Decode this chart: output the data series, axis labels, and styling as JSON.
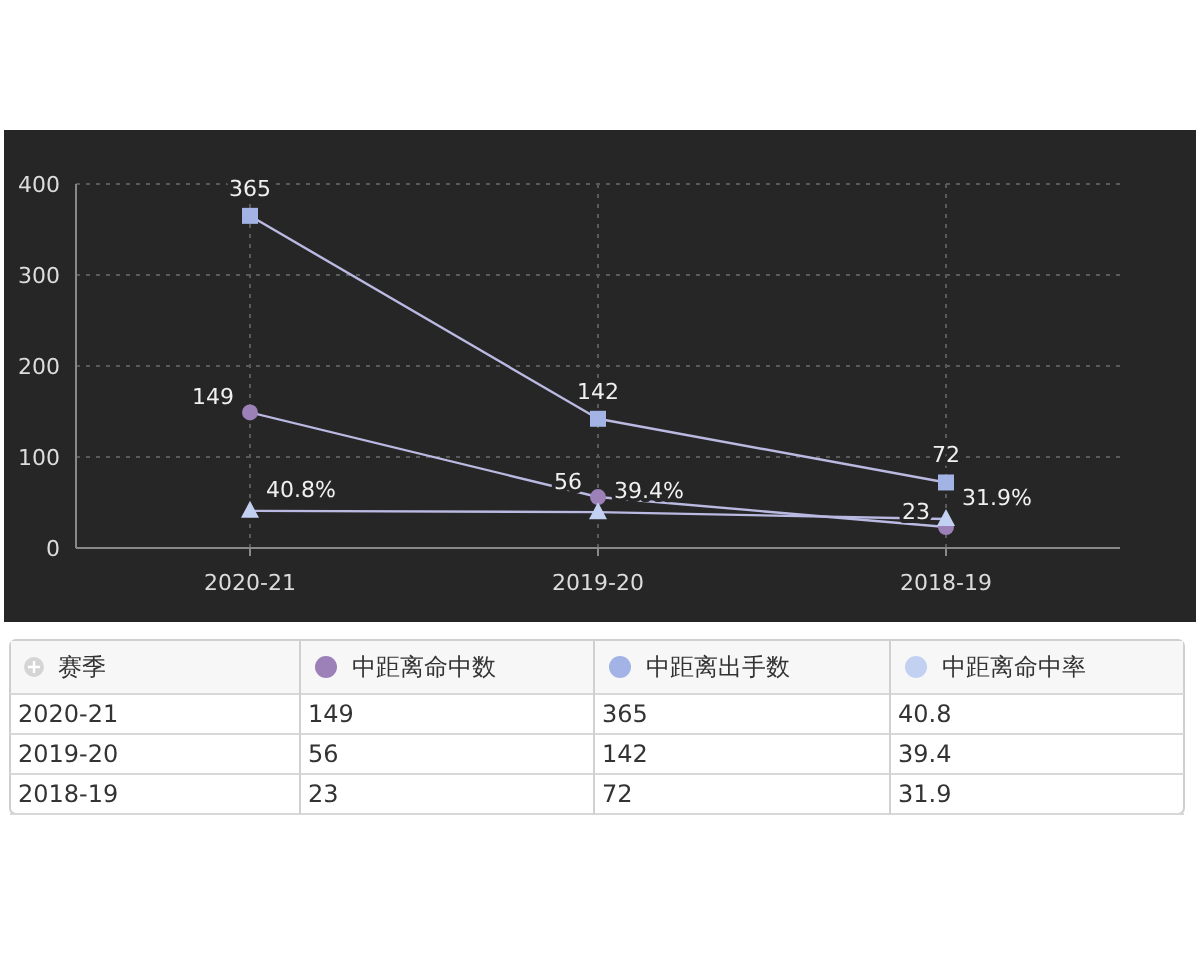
{
  "chart_data": [
    {
      "type": "line",
      "xlabel": "赛季",
      "categories": [
        "2020-21",
        "2019-20",
        "2018-19"
      ],
      "series": [
        {
          "name": "中距离命中数",
          "color": "#9c80b8",
          "marker": "circle",
          "values": [
            149,
            56,
            23
          ],
          "value_labels": [
            "149",
            "56",
            "23"
          ]
        },
        {
          "name": "中距离出手数",
          "color": "#a3b3e6",
          "marker": "square",
          "values": [
            365,
            142,
            72
          ],
          "value_labels": [
            "365",
            "142",
            "72"
          ]
        },
        {
          "name": "中距离命中率",
          "color": "#c2d0f2",
          "marker": "triangle",
          "values": [
            40.8,
            39.4,
            31.9
          ],
          "value_labels": [
            "40.8%",
            "39.4%",
            "31.9%"
          ]
        }
      ],
      "ylim": [
        0,
        400
      ],
      "yticks": [
        0,
        100,
        200,
        300,
        400
      ],
      "grid": true,
      "legend": "bottom"
    },
    {
      "type": "other",
      "annotations": [
        "149",
        "365",
        "40.8",
        "56",
        "142",
        "39.4",
        "23",
        "72",
        "31.9"
      ]
    }
  ]
}
